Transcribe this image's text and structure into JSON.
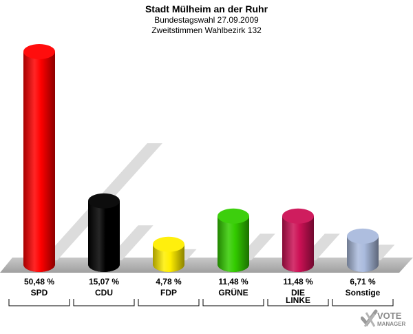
{
  "header": {
    "title": "Stadt Mülheim an der Ruhr",
    "subtitle1": "Bundestagswahl 27.09.2009",
    "subtitle2": "Zweitstimmen Wahlbezirk 132"
  },
  "logo": {
    "line1": "VOTE",
    "line2": "MANAGER",
    "icon": "checkmark-x-icon"
  },
  "chart_data": {
    "type": "bar",
    "categories": [
      "SPD",
      "CDU",
      "FDP",
      "GRÜNE",
      "DIE LINKE",
      "Sonstige"
    ],
    "category_lines": [
      [
        "SPD"
      ],
      [
        "CDU"
      ],
      [
        "FDP"
      ],
      [
        "GRÜNE"
      ],
      [
        "DIE",
        "LINKE"
      ],
      [
        "Sonstige"
      ]
    ],
    "values": [
      50.48,
      15.07,
      4.78,
      11.48,
      11.48,
      6.71
    ],
    "value_labels": [
      "50,48 %",
      "15,07 %",
      "4,78 %",
      "11,48 %",
      "11,48 %",
      "6,71 %"
    ],
    "colors": [
      "#ff0000",
      "#000000",
      "#ffee00",
      "#33cc00",
      "#cc1155",
      "#aabbdd"
    ],
    "ylim": [
      0,
      50.48
    ],
    "grid": false,
    "legend": "none",
    "style": "3d cylinders with shadow"
  }
}
